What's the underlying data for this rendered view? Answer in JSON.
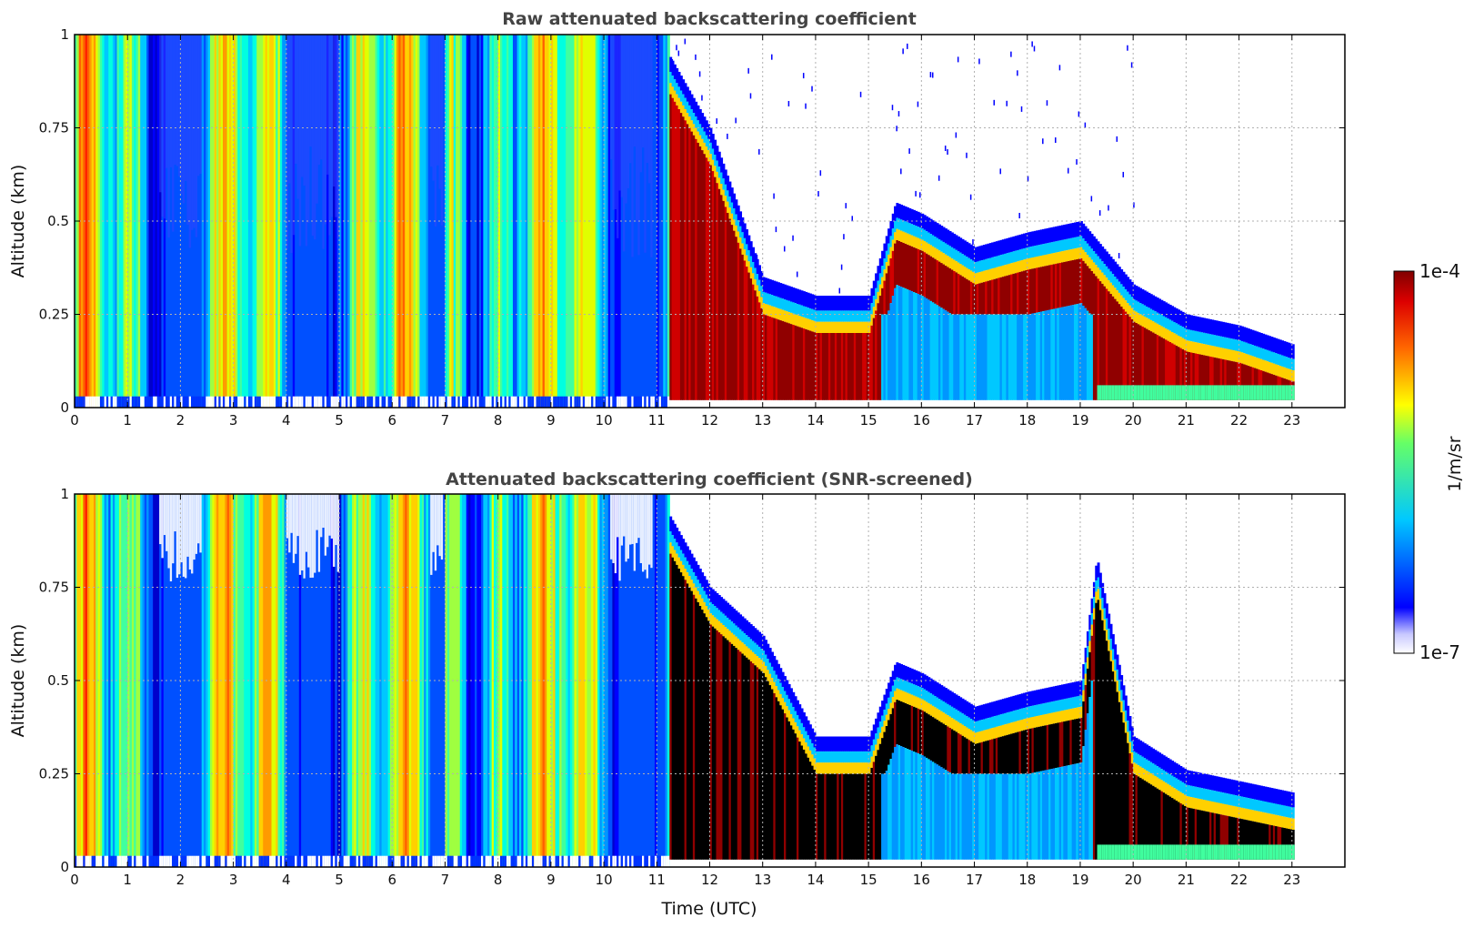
{
  "chart_data": [
    {
      "type": "heatmap",
      "title": "Raw attenuated backscattering coefficient",
      "xlabel": "",
      "ylabel": "Altitude (km)",
      "xlim": [
        0,
        24
      ],
      "ylim": [
        0,
        1
      ],
      "x_ticks": [
        "0",
        "1",
        "2",
        "3",
        "4",
        "5",
        "6",
        "7",
        "8",
        "9",
        "10",
        "11",
        "12",
        "13",
        "14",
        "15",
        "16",
        "17",
        "18",
        "19",
        "20",
        "21",
        "22",
        "23"
      ],
      "y_ticks": [
        "0",
        "0.25",
        "0.5",
        "0.75",
        "1"
      ],
      "grid": true,
      "data_end_hour": 23,
      "layer_top_km": [
        {
          "t": 11.0,
          "top": 1.0
        },
        {
          "t": 12.0,
          "top": 0.75
        },
        {
          "t": 13.0,
          "top": 0.35
        },
        {
          "t": 14.0,
          "top": 0.3
        },
        {
          "t": 15.0,
          "top": 0.3
        },
        {
          "t": 15.5,
          "top": 0.55
        },
        {
          "t": 16.0,
          "top": 0.52
        },
        {
          "t": 17.0,
          "top": 0.43
        },
        {
          "t": 18.0,
          "top": 0.47
        },
        {
          "t": 19.0,
          "top": 0.5
        },
        {
          "t": 20.0,
          "top": 0.33
        },
        {
          "t": 21.0,
          "top": 0.25
        },
        {
          "t": 22.0,
          "top": 0.22
        },
        {
          "t": 23.0,
          "top": 0.17
        }
      ]
    },
    {
      "type": "heatmap",
      "title": "Attenuated backscattering coefficient (SNR-screened)",
      "xlabel": "Time (UTC)",
      "ylabel": "Altitude (km)",
      "xlim": [
        0,
        24
      ],
      "ylim": [
        0,
        1
      ],
      "x_ticks": [
        "0",
        "1",
        "2",
        "3",
        "4",
        "5",
        "6",
        "7",
        "8",
        "9",
        "10",
        "11",
        "12",
        "13",
        "14",
        "15",
        "16",
        "17",
        "18",
        "19",
        "20",
        "21",
        "22",
        "23"
      ],
      "y_ticks": [
        "0",
        "0.25",
        "0.5",
        "0.75",
        "1"
      ],
      "grid": true,
      "data_end_hour": 23,
      "layer_top_km": [
        {
          "t": 11.0,
          "top": 1.0
        },
        {
          "t": 12.0,
          "top": 0.75
        },
        {
          "t": 13.0,
          "top": 0.62
        },
        {
          "t": 14.0,
          "top": 0.35
        },
        {
          "t": 15.0,
          "top": 0.35
        },
        {
          "t": 15.5,
          "top": 0.55
        },
        {
          "t": 16.0,
          "top": 0.52
        },
        {
          "t": 17.0,
          "top": 0.43
        },
        {
          "t": 18.0,
          "top": 0.47
        },
        {
          "t": 19.0,
          "top": 0.5
        },
        {
          "t": 19.3,
          "top": 0.83
        },
        {
          "t": 20.0,
          "top": 0.35
        },
        {
          "t": 21.0,
          "top": 0.26
        },
        {
          "t": 22.0,
          "top": 0.23
        },
        {
          "t": 23.0,
          "top": 0.2
        }
      ]
    }
  ],
  "colorbar": {
    "label": "1/m/sr",
    "max_label": "1e-4",
    "min_label": "1e-7",
    "colormap": "jet"
  }
}
